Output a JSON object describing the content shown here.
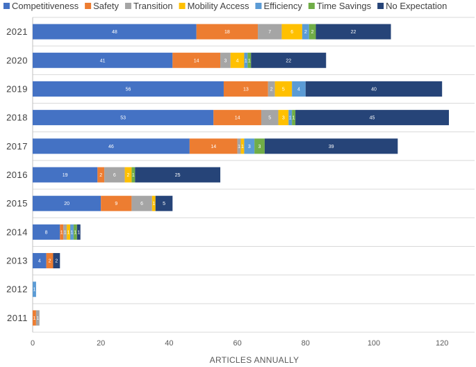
{
  "chart_data": {
    "type": "bar",
    "orientation": "horizontal",
    "stacked": true,
    "title": "",
    "xlabel": "ARTICLES ANNUALLY",
    "ylabel": "",
    "xlim": [
      0,
      125
    ],
    "xticks": [
      0,
      20,
      40,
      60,
      80,
      100,
      120
    ],
    "grid": true,
    "legend_position": "top",
    "categories": [
      "2021",
      "2020",
      "2019",
      "2018",
      "2017",
      "2016",
      "2015",
      "2014",
      "2013",
      "2012",
      "2011"
    ],
    "series": [
      {
        "name": "Competitiveness",
        "color": "#4472C4",
        "values": [
          48,
          41,
          56,
          53,
          46,
          19,
          20,
          8,
          4,
          0,
          0
        ]
      },
      {
        "name": "Safety",
        "color": "#ED7D31",
        "values": [
          18,
          14,
          13,
          14,
          14,
          2,
          9,
          1,
          2,
          0,
          1
        ]
      },
      {
        "name": "Transition",
        "color": "#A5A5A5",
        "values": [
          7,
          3,
          2,
          5,
          1,
          6,
          6,
          1,
          0,
          0,
          1
        ]
      },
      {
        "name": "Mobility Access",
        "color": "#FFC000",
        "values": [
          6,
          4,
          5,
          3,
          1,
          2,
          1,
          1,
          0,
          0,
          0
        ]
      },
      {
        "name": "Efficiency",
        "color": "#5B9BD5",
        "values": [
          2,
          1,
          4,
          1,
          3,
          0,
          0,
          1,
          0,
          1,
          0
        ]
      },
      {
        "name": "Time Savings",
        "color": "#70AD47",
        "values": [
          2,
          1,
          0,
          1,
          3,
          1,
          0,
          1,
          0,
          0,
          0
        ]
      },
      {
        "name": "No Expectation",
        "color": "#264478",
        "values": [
          22,
          22,
          40,
          45,
          39,
          25,
          5,
          1,
          2,
          0,
          0
        ]
      }
    ]
  }
}
